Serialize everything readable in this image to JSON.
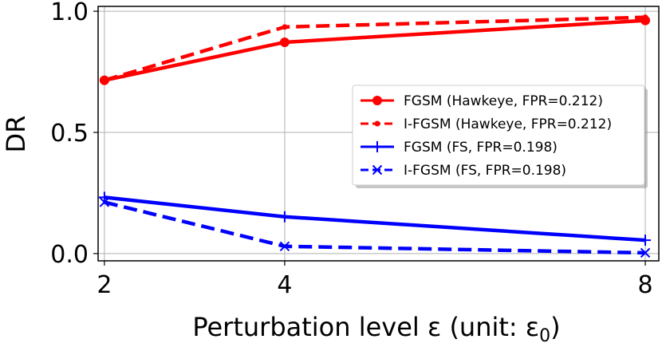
{
  "chart_data": {
    "type": "line",
    "title": "",
    "xlabel": "Perturbation level ε (unit: ε",
    "xlabel_sub": "0",
    "xlabel_close": ")",
    "ylabel": "DR",
    "x": [
      2,
      4,
      8
    ],
    "x_ticks": [
      "2",
      "4",
      "8"
    ],
    "y_ticks": [
      "0.0",
      "0.5",
      "1.0"
    ],
    "xlim": [
      1.93,
      8.15
    ],
    "ylim": [
      -0.03,
      1.02
    ],
    "grid": true,
    "legend_position": "right",
    "series": [
      {
        "name": "FGSM (Hawkeye, FPR=0.212)",
        "values": [
          0.715,
          0.872,
          0.962
        ],
        "color": "#ff0000",
        "style": "solid",
        "marker": "circle"
      },
      {
        "name": "I-FGSM (Hawkeye, FPR=0.212)",
        "values": [
          0.715,
          0.935,
          0.975
        ],
        "color": "#ff0000",
        "style": "dashed",
        "marker": "point"
      },
      {
        "name": "FGSM (FS, FPR=0.198)",
        "values": [
          0.232,
          0.152,
          0.055
        ],
        "color": "#0000ff",
        "style": "solid",
        "marker": "plus"
      },
      {
        "name": "I-FGSM (FS, FPR=0.198)",
        "values": [
          0.212,
          0.03,
          0.003
        ],
        "color": "#0000ff",
        "style": "dashed",
        "marker": "x"
      }
    ]
  }
}
